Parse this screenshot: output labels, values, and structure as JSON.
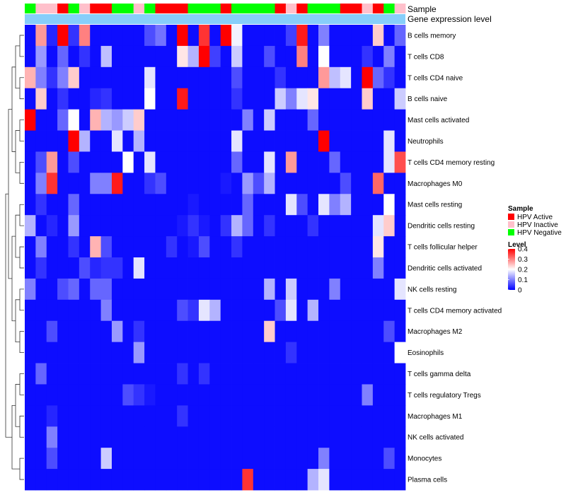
{
  "chart_data": {
    "type": "heatmap",
    "row_labels": [
      "B cells memory",
      "T cells CD8",
      "T cells CD4 naive",
      "B cells naive",
      "Mast cells activated",
      "Neutrophils",
      "T cells CD4 memory resting",
      "Macrophages M0",
      "Mast cells resting",
      "Dendritic cells resting",
      "T cells follicular helper",
      "Dendritic cells activated",
      "NK cells resting",
      "T cells CD4 memory activated",
      "Macrophages M2",
      "Eosinophils",
      "T cells gamma delta",
      "T cells regulatory  Tregs",
      "Macrophages M1",
      "NK cells activated",
      "Monocytes",
      "Plasma cells"
    ],
    "annotations": {
      "sample_label": "Sample",
      "expression_label": "Gene expression level",
      "sample_values": [
        "N",
        "I",
        "I",
        "A",
        "N",
        "I",
        "A",
        "A",
        "N",
        "N",
        "I",
        "N",
        "A",
        "A",
        "A",
        "N",
        "N",
        "N",
        "A",
        "N",
        "N",
        "N",
        "N",
        "A",
        "I",
        "A",
        "N",
        "N",
        "N",
        "A",
        "A",
        "I",
        "A",
        "N",
        "I"
      ]
    },
    "values": [
      [
        0.01,
        0.28,
        0.03,
        0.42,
        0.04,
        0.3,
        0.01,
        0.01,
        0.01,
        0.01,
        0.01,
        0.06,
        0.09,
        0.01,
        0.4,
        0.01,
        0.36,
        0.01,
        0.42,
        0.19,
        0.01,
        0.01,
        0.01,
        0.01,
        0.05,
        0.38,
        0.01,
        0.1,
        0.01,
        0.01,
        0.01,
        0.01,
        0.24,
        0.01,
        0.08
      ],
      [
        0.01,
        0.12,
        0.01,
        0.08,
        0.01,
        0.04,
        0.01,
        0.15,
        0.01,
        0.01,
        0.01,
        0.01,
        0.01,
        0.01,
        0.22,
        0.14,
        0.4,
        0.05,
        0.01,
        0.16,
        0.01,
        0.01,
        0.06,
        0.01,
        0.01,
        0.3,
        0.01,
        0.2,
        0.01,
        0.01,
        0.01,
        0.04,
        0.01,
        0.1,
        0.01
      ],
      [
        0.26,
        0.1,
        0.04,
        0.1,
        0.24,
        0.01,
        0.01,
        0.01,
        0.01,
        0.01,
        0.01,
        0.18,
        0.01,
        0.01,
        0.01,
        0.01,
        0.01,
        0.01,
        0.01,
        0.06,
        0.01,
        0.01,
        0.01,
        0.04,
        0.01,
        0.01,
        0.01,
        0.28,
        0.15,
        0.18,
        0.01,
        0.42,
        0.08,
        0.04,
        0.01
      ],
      [
        0.01,
        0.24,
        0.01,
        0.04,
        0.01,
        0.01,
        0.03,
        0.04,
        0.01,
        0.01,
        0.01,
        0.2,
        0.01,
        0.01,
        0.38,
        0.01,
        0.01,
        0.01,
        0.01,
        0.04,
        0.01,
        0.01,
        0.01,
        0.16,
        0.1,
        0.18,
        0.22,
        0.01,
        0.01,
        0.01,
        0.01,
        0.24,
        0.01,
        0.01,
        0.16
      ],
      [
        0.42,
        0.01,
        0.01,
        0.08,
        0.2,
        0.01,
        0.26,
        0.14,
        0.12,
        0.16,
        0.24,
        0.01,
        0.01,
        0.01,
        0.01,
        0.01,
        0.01,
        0.01,
        0.01,
        0.01,
        0.1,
        0.01,
        0.16,
        0.01,
        0.01,
        0.01,
        0.08,
        0.01,
        0.01,
        0.01,
        0.01,
        0.01,
        0.01,
        0.01,
        0.01
      ],
      [
        0.01,
        0.01,
        0.01,
        0.01,
        0.4,
        0.14,
        0.01,
        0.01,
        0.18,
        0.01,
        0.14,
        0.01,
        0.01,
        0.01,
        0.01,
        0.01,
        0.01,
        0.01,
        0.01,
        0.18,
        0.01,
        0.01,
        0.01,
        0.01,
        0.01,
        0.01,
        0.01,
        0.4,
        0.01,
        0.01,
        0.01,
        0.01,
        0.01,
        0.18,
        0.01
      ],
      [
        0.01,
        0.06,
        0.28,
        0.01,
        0.06,
        0.01,
        0.01,
        0.01,
        0.01,
        0.2,
        0.01,
        0.18,
        0.01,
        0.01,
        0.01,
        0.01,
        0.01,
        0.01,
        0.01,
        0.08,
        0.01,
        0.01,
        0.18,
        0.01,
        0.28,
        0.01,
        0.01,
        0.01,
        0.08,
        0.01,
        0.01,
        0.01,
        0.01,
        0.18,
        0.34
      ],
      [
        0.01,
        0.1,
        0.36,
        0.01,
        0.01,
        0.01,
        0.1,
        0.1,
        0.38,
        0.01,
        0.01,
        0.04,
        0.06,
        0.01,
        0.01,
        0.01,
        0.01,
        0.01,
        0.02,
        0.01,
        0.12,
        0.06,
        0.14,
        0.01,
        0.01,
        0.01,
        0.01,
        0.01,
        0.01,
        0.06,
        0.01,
        0.01,
        0.32,
        0.01,
        0.01
      ],
      [
        0.01,
        0.04,
        0.01,
        0.01,
        0.08,
        0.01,
        0.01,
        0.01,
        0.01,
        0.01,
        0.01,
        0.01,
        0.01,
        0.01,
        0.01,
        0.02,
        0.01,
        0.01,
        0.01,
        0.01,
        0.08,
        0.01,
        0.01,
        0.01,
        0.18,
        0.06,
        0.01,
        0.18,
        0.1,
        0.14,
        0.01,
        0.01,
        0.01,
        0.2,
        0.01
      ],
      [
        0.14,
        0.01,
        0.03,
        0.01,
        0.12,
        0.01,
        0.01,
        0.01,
        0.01,
        0.01,
        0.01,
        0.01,
        0.01,
        0.01,
        0.02,
        0.04,
        0.02,
        0.01,
        0.04,
        0.14,
        0.08,
        0.01,
        0.04,
        0.01,
        0.01,
        0.01,
        0.04,
        0.01,
        0.01,
        0.01,
        0.01,
        0.01,
        0.18,
        0.24,
        0.01
      ],
      [
        0.01,
        0.1,
        0.01,
        0.01,
        0.04,
        0.01,
        0.26,
        0.06,
        0.01,
        0.01,
        0.01,
        0.01,
        0.01,
        0.04,
        0.01,
        0.02,
        0.06,
        0.01,
        0.01,
        0.04,
        0.01,
        0.01,
        0.01,
        0.01,
        0.01,
        0.01,
        0.01,
        0.01,
        0.01,
        0.01,
        0.01,
        0.01,
        0.22,
        0.01,
        0.01
      ],
      [
        0.01,
        0.04,
        0.01,
        0.01,
        0.01,
        0.06,
        0.03,
        0.04,
        0.04,
        0.01,
        0.18,
        0.01,
        0.01,
        0.01,
        0.01,
        0.01,
        0.01,
        0.01,
        0.01,
        0.01,
        0.01,
        0.01,
        0.01,
        0.01,
        0.01,
        0.01,
        0.01,
        0.01,
        0.01,
        0.01,
        0.01,
        0.01,
        0.1,
        0.01,
        0.01
      ],
      [
        0.1,
        0.01,
        0.01,
        0.06,
        0.08,
        0.01,
        0.08,
        0.08,
        0.01,
        0.01,
        0.01,
        0.01,
        0.01,
        0.01,
        0.01,
        0.01,
        0.01,
        0.01,
        0.01,
        0.01,
        0.01,
        0.01,
        0.14,
        0.01,
        0.16,
        0.01,
        0.01,
        0.01,
        0.1,
        0.01,
        0.01,
        0.01,
        0.01,
        0.01,
        0.18
      ],
      [
        0.01,
        0.01,
        0.01,
        0.01,
        0.01,
        0.01,
        0.01,
        0.1,
        0.01,
        0.01,
        0.01,
        0.01,
        0.01,
        0.01,
        0.06,
        0.04,
        0.18,
        0.14,
        0.01,
        0.01,
        0.01,
        0.01,
        0.01,
        0.06,
        0.18,
        0.01,
        0.14,
        0.01,
        0.01,
        0.01,
        0.01,
        0.01,
        0.01,
        0.01,
        0.01
      ],
      [
        0.01,
        0.01,
        0.06,
        0.01,
        0.01,
        0.01,
        0.01,
        0.01,
        0.12,
        0.01,
        0.04,
        0.01,
        0.01,
        0.01,
        0.01,
        0.01,
        0.01,
        0.01,
        0.01,
        0.01,
        0.01,
        0.01,
        0.24,
        0.01,
        0.01,
        0.01,
        0.01,
        0.01,
        0.01,
        0.01,
        0.01,
        0.01,
        0.01,
        0.06,
        0.01
      ],
      [
        0.01,
        0.01,
        0.01,
        0.01,
        0.01,
        0.01,
        0.01,
        0.01,
        0.01,
        0.01,
        0.12,
        0.01,
        0.01,
        0.01,
        0.01,
        0.01,
        0.01,
        0.01,
        0.01,
        0.01,
        0.01,
        0.01,
        0.01,
        0.01,
        0.04,
        0.01,
        0.01,
        0.01,
        0.01,
        0.01,
        0.01,
        0.01,
        0.01,
        0.01,
        0.2
      ],
      [
        0.01,
        0.08,
        0.01,
        0.01,
        0.01,
        0.01,
        0.01,
        0.01,
        0.01,
        0.01,
        0.01,
        0.01,
        0.01,
        0.01,
        0.04,
        0.01,
        0.04,
        0.01,
        0.01,
        0.01,
        0.01,
        0.01,
        0.01,
        0.01,
        0.01,
        0.01,
        0.01,
        0.01,
        0.01,
        0.01,
        0.01,
        0.01,
        0.01,
        0.01,
        0.01
      ],
      [
        0.01,
        0.01,
        0.01,
        0.01,
        0.01,
        0.01,
        0.01,
        0.01,
        0.01,
        0.06,
        0.04,
        0.02,
        0.01,
        0.01,
        0.01,
        0.01,
        0.01,
        0.01,
        0.01,
        0.01,
        0.01,
        0.01,
        0.01,
        0.01,
        0.01,
        0.01,
        0.01,
        0.01,
        0.01,
        0.01,
        0.01,
        0.1,
        0.01,
        0.01,
        0.01
      ],
      [
        0.01,
        0.01,
        0.03,
        0.01,
        0.01,
        0.01,
        0.01,
        0.01,
        0.01,
        0.01,
        0.01,
        0.01,
        0.01,
        0.01,
        0.04,
        0.01,
        0.01,
        0.01,
        0.01,
        0.01,
        0.01,
        0.01,
        0.01,
        0.01,
        0.01,
        0.01,
        0.01,
        0.01,
        0.01,
        0.01,
        0.01,
        0.01,
        0.01,
        0.01,
        0.01
      ],
      [
        0.01,
        0.01,
        0.1,
        0.01,
        0.01,
        0.01,
        0.01,
        0.01,
        0.01,
        0.01,
        0.01,
        0.01,
        0.01,
        0.01,
        0.01,
        0.01,
        0.01,
        0.01,
        0.01,
        0.01,
        0.01,
        0.01,
        0.01,
        0.01,
        0.01,
        0.01,
        0.01,
        0.01,
        0.01,
        0.01,
        0.01,
        0.01,
        0.01,
        0.01,
        0.01
      ],
      [
        0.01,
        0.01,
        0.06,
        0.01,
        0.01,
        0.01,
        0.01,
        0.16,
        0.01,
        0.01,
        0.01,
        0.01,
        0.01,
        0.01,
        0.01,
        0.01,
        0.01,
        0.01,
        0.01,
        0.01,
        0.01,
        0.01,
        0.01,
        0.01,
        0.01,
        0.01,
        0.01,
        0.1,
        0.01,
        0.01,
        0.01,
        0.01,
        0.01,
        0.06,
        0.01
      ],
      [
        0.01,
        0.01,
        0.01,
        0.01,
        0.01,
        0.01,
        0.01,
        0.01,
        0.01,
        0.01,
        0.01,
        0.01,
        0.01,
        0.01,
        0.01,
        0.01,
        0.01,
        0.01,
        0.01,
        0.01,
        0.36,
        0.01,
        0.01,
        0.01,
        0.01,
        0.01,
        0.14,
        0.18,
        0.01,
        0.01,
        0.01,
        0.01,
        0.01,
        0.01,
        0.01
      ]
    ],
    "color_scale": {
      "min": 0,
      "max": 0.4,
      "low": "#0000ff",
      "mid": "#ffffff",
      "high": "#ff0000"
    },
    "legend": {
      "sample_title": "Sample",
      "sample_items": [
        {
          "key": "A",
          "label": "HPV Active",
          "color": "#ff0000"
        },
        {
          "key": "I",
          "label": "HPV Inactive",
          "color": "#ffc0cb"
        },
        {
          "key": "N",
          "label": "HPV Negative",
          "color": "#00ff00"
        }
      ],
      "level_title": "Level",
      "level_ticks": [
        0.4,
        0.3,
        0.2,
        0.1,
        0
      ]
    },
    "expression_bar_color": "#87cefa"
  }
}
